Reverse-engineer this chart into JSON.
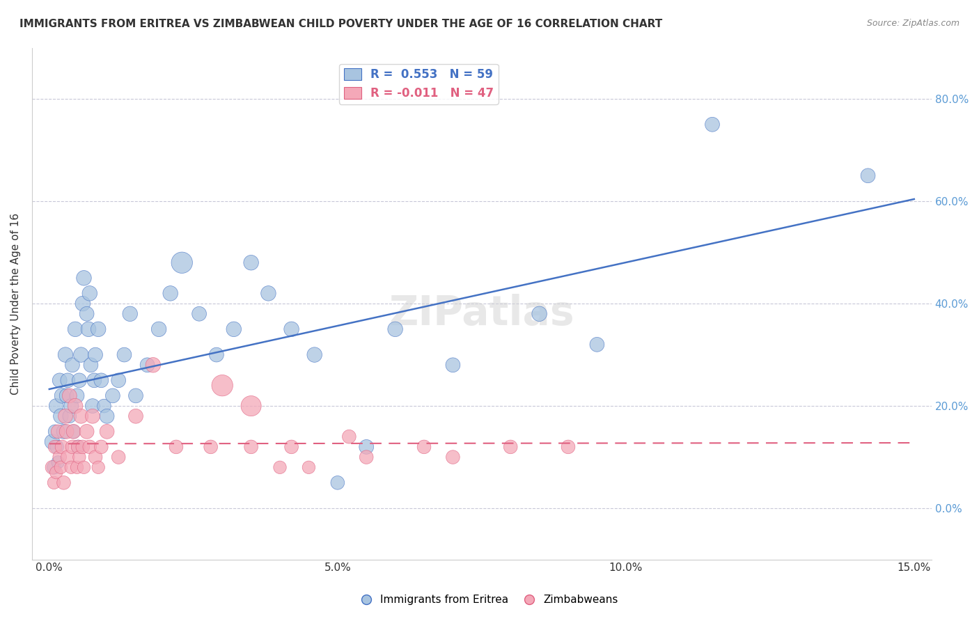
{
  "title": "IMMIGRANTS FROM ERITREA VS ZIMBABWEAN CHILD POVERTY UNDER THE AGE OF 16 CORRELATION CHART",
  "source": "Source: ZipAtlas.com",
  "ylabel": "Child Poverty Under the Age of 16",
  "xlabel_ticks": [
    "0.0%",
    "5.0%",
    "10.0%",
    "15.0%"
  ],
  "ylabel_ticks": [
    "0.0%",
    "20.0%",
    "40.0%",
    "60.0%",
    "80.0%"
  ],
  "xlim": [
    0.0,
    15.0
  ],
  "ylim": [
    -5.0,
    88.0
  ],
  "legend1_label": "R =  0.553   N = 59",
  "legend2_label": "R = -0.011   N = 47",
  "series1_color": "#a8c4e0",
  "series2_color": "#f4a8b8",
  "line1_color": "#4472c4",
  "line2_color": "#e06080",
  "background_color": "#ffffff",
  "grid_color": "#c8c8d8",
  "watermark": "ZIPatlas",
  "eritrea_x": [
    0.05,
    0.08,
    0.1,
    0.12,
    0.13,
    0.15,
    0.18,
    0.2,
    0.22,
    0.25,
    0.28,
    0.3,
    0.32,
    0.35,
    0.38,
    0.4,
    0.42,
    0.45,
    0.48,
    0.5,
    0.52,
    0.55,
    0.58,
    0.6,
    0.65,
    0.68,
    0.7,
    0.72,
    0.75,
    0.78,
    0.8,
    0.85,
    0.9,
    0.95,
    1.0,
    1.1,
    1.2,
    1.3,
    1.4,
    1.5,
    1.7,
    1.9,
    2.1,
    2.3,
    2.6,
    2.9,
    3.2,
    3.5,
    3.8,
    4.2,
    4.6,
    5.0,
    5.5,
    6.0,
    7.0,
    8.5,
    9.5,
    11.5,
    14.2
  ],
  "eritrea_y": [
    13,
    8,
    15,
    20,
    12,
    9,
    25,
    18,
    22,
    15,
    30,
    22,
    25,
    18,
    20,
    28,
    15,
    35,
    22,
    12,
    25,
    30,
    40,
    45,
    38,
    35,
    42,
    28,
    20,
    25,
    30,
    35,
    25,
    20,
    18,
    22,
    25,
    30,
    38,
    22,
    28,
    35,
    42,
    48,
    38,
    30,
    35,
    48,
    42,
    35,
    30,
    5,
    12,
    35,
    28,
    38,
    32,
    75,
    65
  ],
  "eritrea_sizes": [
    30,
    25,
    25,
    28,
    25,
    22,
    28,
    30,
    30,
    28,
    30,
    28,
    28,
    25,
    28,
    28,
    25,
    30,
    28,
    25,
    28,
    30,
    30,
    30,
    28,
    30,
    30,
    28,
    28,
    28,
    28,
    30,
    28,
    25,
    28,
    28,
    28,
    28,
    30,
    28,
    28,
    30,
    30,
    60,
    28,
    28,
    30,
    30,
    30,
    30,
    30,
    25,
    28,
    30,
    28,
    30,
    28,
    28,
    28
  ],
  "zimbabwe_x": [
    0.05,
    0.08,
    0.1,
    0.12,
    0.15,
    0.18,
    0.2,
    0.22,
    0.25,
    0.28,
    0.3,
    0.32,
    0.35,
    0.38,
    0.4,
    0.42,
    0.45,
    0.48,
    0.5,
    0.52,
    0.55,
    0.58,
    0.6,
    0.65,
    0.7,
    0.75,
    0.8,
    0.85,
    0.9,
    1.0,
    1.2,
    1.5,
    1.8,
    2.2,
    2.8,
    3.5,
    4.2,
    5.2,
    6.5,
    8.0,
    3.0,
    3.5,
    4.0,
    4.5,
    5.5,
    7.0,
    9.0
  ],
  "zimbabwe_y": [
    8,
    5,
    12,
    7,
    15,
    10,
    8,
    12,
    5,
    18,
    15,
    10,
    22,
    8,
    12,
    15,
    20,
    8,
    12,
    10,
    18,
    12,
    8,
    15,
    12,
    18,
    10,
    8,
    12,
    15,
    10,
    18,
    28,
    12,
    12,
    12,
    12,
    14,
    12,
    12,
    24,
    20,
    8,
    8,
    10,
    10,
    12
  ],
  "zimbabwe_sizes": [
    25,
    22,
    25,
    22,
    25,
    25,
    22,
    25,
    25,
    28,
    28,
    25,
    28,
    22,
    25,
    28,
    30,
    22,
    25,
    22,
    28,
    25,
    22,
    28,
    25,
    28,
    25,
    22,
    25,
    28,
    25,
    28,
    30,
    25,
    25,
    25,
    25,
    25,
    25,
    25,
    60,
    55,
    22,
    22,
    25,
    25,
    25
  ]
}
